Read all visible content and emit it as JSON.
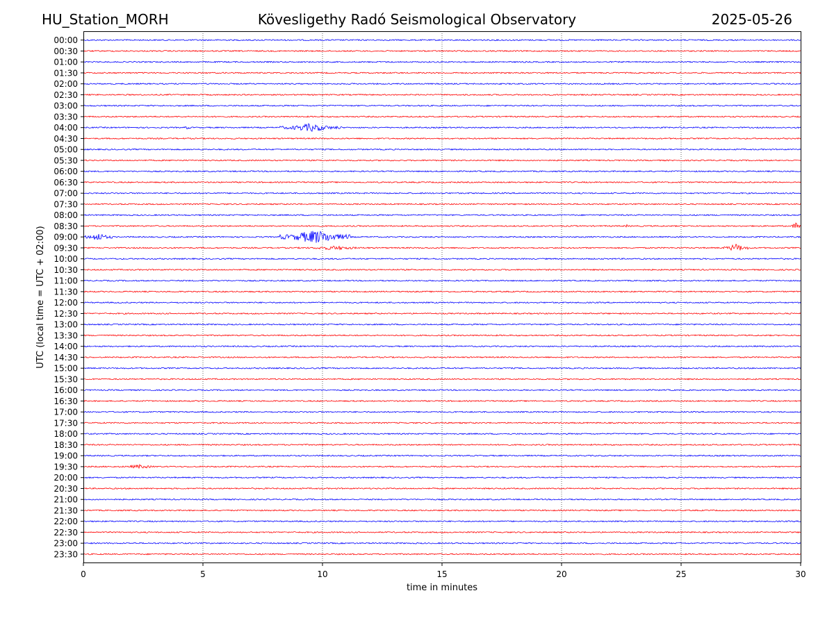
{
  "header": {
    "station": "HU_Station_MORH",
    "observatory": "Kövesligethy Radó Seismological Observatory",
    "date": "2025-05-26"
  },
  "colors": {
    "even_row": "#0000ff",
    "odd_row": "#ff0000",
    "grid": "#000000"
  },
  "chart_data": {
    "type": "line",
    "title": "",
    "xlabel": "time in minutes",
    "ylabel": "UTC (local time = UTC + 02:00)",
    "xlim": [
      0,
      30
    ],
    "xticks": [
      0,
      5,
      10,
      15,
      20,
      25,
      30
    ],
    "grid": "vertical dotted at x ticks",
    "rows": [
      "00:00",
      "00:30",
      "01:00",
      "01:30",
      "02:00",
      "02:30",
      "03:00",
      "03:30",
      "04:00",
      "04:30",
      "05:00",
      "05:30",
      "06:00",
      "06:30",
      "07:00",
      "07:30",
      "08:00",
      "08:30",
      "09:00",
      "09:30",
      "10:00",
      "10:30",
      "11:00",
      "11:30",
      "12:00",
      "12:30",
      "13:00",
      "13:30",
      "14:00",
      "14:30",
      "15:00",
      "15:30",
      "16:00",
      "16:30",
      "17:00",
      "17:30",
      "18:00",
      "18:30",
      "19:00",
      "19:30",
      "20:00",
      "20:30",
      "21:00",
      "21:30",
      "22:00",
      "22:30",
      "23:00",
      "23:30"
    ],
    "bursts": [
      {
        "row": "04:00",
        "start_min": 4.2,
        "end_min": 4.5,
        "amplitude": "low"
      },
      {
        "row": "04:00",
        "start_min": 8.2,
        "end_min": 10.8,
        "amplitude": "medium"
      },
      {
        "row": "08:30",
        "start_min": 22.6,
        "end_min": 22.8,
        "amplitude": "low"
      },
      {
        "row": "08:30",
        "start_min": 29.6,
        "end_min": 30.0,
        "amplitude": "medium"
      },
      {
        "row": "09:00",
        "start_min": 0.0,
        "end_min": 1.2,
        "amplitude": "medium"
      },
      {
        "row": "09:00",
        "start_min": 8.2,
        "end_min": 11.2,
        "amplitude": "high"
      },
      {
        "row": "09:30",
        "start_min": 9.0,
        "end_min": 12.0,
        "amplitude": "low"
      },
      {
        "row": "09:30",
        "start_min": 26.8,
        "end_min": 27.8,
        "amplitude": "medium"
      },
      {
        "row": "19:30",
        "start_min": 1.5,
        "end_min": 3.2,
        "amplitude": "low"
      }
    ]
  }
}
